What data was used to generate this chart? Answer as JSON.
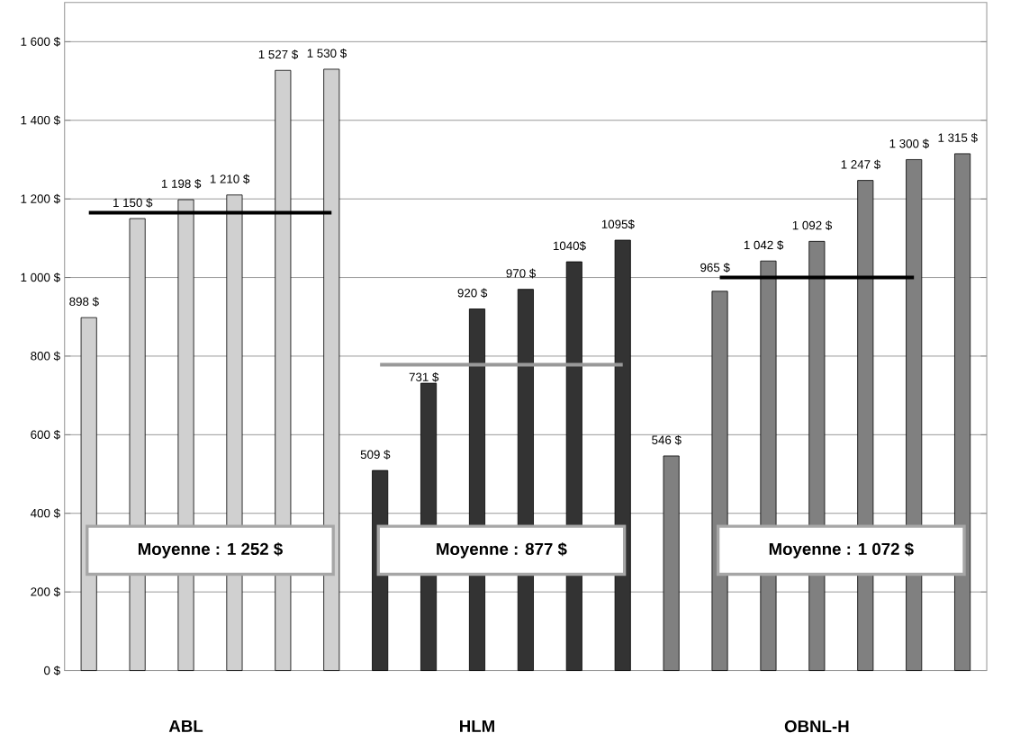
{
  "chart_data": {
    "type": "bar",
    "categories": [
      null,
      null,
      "ABL",
      null,
      null,
      null,
      null,
      null,
      "HLM",
      null,
      null,
      null,
      null,
      null,
      null,
      "OBNL-H",
      null,
      null,
      null
    ],
    "ylim": [
      0,
      1700
    ],
    "yticks": [
      {
        "value": 0,
        "label": "0 $"
      },
      {
        "value": 200,
        "label": "200 $"
      },
      {
        "value": 400,
        "label": "400 $"
      },
      {
        "value": 600,
        "label": "600 $"
      },
      {
        "value": 800,
        "label": "800 $"
      },
      {
        "value": 1000,
        "label": "1 000 $"
      },
      {
        "value": 1200,
        "label": "1 200 $"
      },
      {
        "value": 1400,
        "label": "1 400 $"
      },
      {
        "value": 1600,
        "label": "1 600 $"
      }
    ],
    "grid": "y",
    "series": [
      {
        "values": [
          898,
          1150,
          1198,
          1210,
          1527,
          1530,
          509,
          731,
          920,
          970,
          1040,
          1095,
          546,
          965,
          1042,
          1092,
          1247,
          1300,
          1315
        ],
        "colors": [
          "#d0d0d0",
          "#d0d0d0",
          "#d0d0d0",
          "#d0d0d0",
          "#d0d0d0",
          "#d0d0d0",
          "#333333",
          "#333333",
          "#333333",
          "#333333",
          "#333333",
          "#333333",
          "#808080",
          "#808080",
          "#808080",
          "#808080",
          "#808080",
          "#808080",
          "#808080"
        ],
        "value_labels": [
          "898 $",
          "1 150 $",
          "1 198 $",
          "1 210 $",
          "1 527 $",
          "1 530 $",
          "509 $",
          "731 $",
          "920 $",
          "970 $",
          "1040$",
          "1095$",
          "546 $",
          "965 $",
          "1 042 $",
          "1 092 $",
          "1 247 $",
          "1 300 $",
          "1 315 $"
        ]
      },
      {
        "type": "line",
        "values": [
          1165,
          1165,
          1165,
          1165,
          1165,
          1165,
          null,
          null,
          null,
          null,
          null,
          null,
          null,
          null,
          null,
          null,
          null,
          null,
          null
        ],
        "color": "#000000"
      },
      {
        "type": "line",
        "values": [
          null,
          null,
          null,
          null,
          null,
          null,
          778,
          778,
          778,
          778,
          778,
          778,
          null,
          null,
          null,
          null,
          null,
          null,
          null
        ],
        "color": "#999999"
      },
      {
        "type": "line",
        "values": [
          null,
          null,
          null,
          null,
          null,
          null,
          null,
          null,
          null,
          null,
          null,
          null,
          null,
          1000,
          1000,
          1000,
          1000,
          1000,
          null
        ],
        "color": "#000000"
      }
    ],
    "annotations": [
      "Moyenne : 1 252 $",
      "Moyenne : 877 $",
      "Moyenne : 1 072 $"
    ]
  }
}
